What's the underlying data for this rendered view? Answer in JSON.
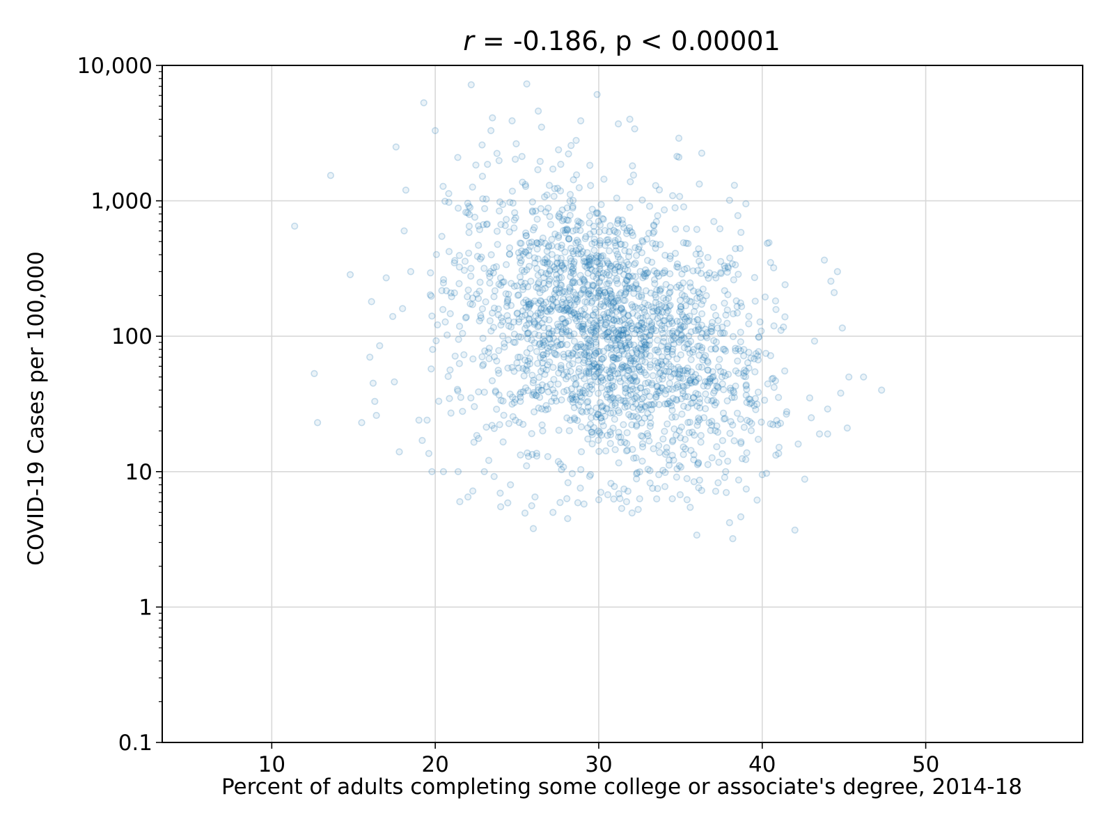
{
  "chart_data": {
    "type": "scatter",
    "title": {
      "prefix": "r",
      "rest": " = -0.186, p < 0.00001"
    },
    "xlabel": "Percent of adults completing some college or associate's degree, 2014-18",
    "ylabel": "COVID-19 Cases per 100,000",
    "xlim": [
      3.3,
      59.6
    ],
    "ylim": [
      0.1,
      10000
    ],
    "yscale": "log",
    "grid": true,
    "x_ticks": [
      10,
      20,
      30,
      40,
      50
    ],
    "x_tick_labels": [
      "10",
      "20",
      "30",
      "40",
      "50"
    ],
    "y_ticks": [
      0.1,
      1,
      10,
      100,
      1000,
      10000
    ],
    "y_tick_labels": [
      "0.1",
      "1",
      "10",
      "100",
      "1,000",
      "10,000"
    ],
    "marker": {
      "shape": "hollow-circle",
      "color": "#1f77b4",
      "alpha": 0.15
    },
    "outlier_points": [
      [
        11.4,
        650
      ],
      [
        13.6,
        1540
      ],
      [
        12.6,
        53
      ],
      [
        12.8,
        23
      ],
      [
        14.8,
        285
      ],
      [
        15.5,
        23
      ],
      [
        16.0,
        70
      ],
      [
        16.2,
        45
      ],
      [
        16.3,
        33
      ],
      [
        16.4,
        26
      ],
      [
        16.1,
        180
      ],
      [
        16.6,
        85
      ],
      [
        17.0,
        270
      ],
      [
        17.4,
        140
      ],
      [
        17.5,
        46
      ],
      [
        17.8,
        14
      ],
      [
        18.0,
        160
      ],
      [
        18.1,
        600
      ],
      [
        18.2,
        1200
      ],
      [
        18.5,
        300
      ],
      [
        19.0,
        24
      ],
      [
        19.2,
        17
      ],
      [
        19.5,
        24
      ],
      [
        19.8,
        10
      ],
      [
        20.5,
        10
      ],
      [
        21.4,
        10
      ],
      [
        21.5,
        6
      ],
      [
        22.0,
        6.5
      ],
      [
        22.3,
        7.2
      ],
      [
        23.0,
        10
      ],
      [
        23.6,
        9.2
      ],
      [
        24.0,
        5.5
      ],
      [
        24.6,
        8
      ],
      [
        25.9,
        5.6
      ],
      [
        26.0,
        3.8
      ],
      [
        26.1,
        6.5
      ],
      [
        27.2,
        5
      ],
      [
        28.1,
        4.5
      ],
      [
        29.5,
        9.5
      ],
      [
        30.0,
        6.2
      ],
      [
        31.7,
        6
      ],
      [
        32.5,
        6.3
      ],
      [
        33.6,
        7.5
      ],
      [
        34.5,
        6.3
      ],
      [
        35.4,
        6.2
      ],
      [
        36.0,
        3.4
      ],
      [
        38.2,
        3.2
      ],
      [
        38.0,
        4.2
      ],
      [
        42.0,
        3.7
      ],
      [
        42.6,
        8.8
      ],
      [
        40.0,
        9.5
      ],
      [
        42.2,
        16
      ],
      [
        43.5,
        19
      ],
      [
        44.0,
        19
      ],
      [
        43.0,
        25
      ],
      [
        44.0,
        29
      ],
      [
        44.8,
        38
      ],
      [
        45.2,
        21
      ],
      [
        45.3,
        50
      ],
      [
        46.2,
        50
      ],
      [
        47.3,
        40
      ],
      [
        44.9,
        115
      ],
      [
        44.2,
        255
      ],
      [
        44.4,
        210
      ],
      [
        44.6,
        300
      ],
      [
        43.8,
        365
      ],
      [
        43.2,
        92
      ],
      [
        42.9,
        35
      ],
      [
        41.4,
        240
      ],
      [
        40.7,
        320
      ],
      [
        39.0,
        950
      ],
      [
        38.0,
        1010
      ],
      [
        36.3,
        2250
      ],
      [
        34.9,
        2900
      ],
      [
        34.9,
        2100
      ],
      [
        32.2,
        3400
      ],
      [
        31.2,
        3700
      ],
      [
        31.9,
        4000
      ],
      [
        29.9,
        6100
      ],
      [
        28.9,
        3900
      ],
      [
        25.6,
        7300
      ],
      [
        22.2,
        7200
      ],
      [
        19.3,
        5300
      ],
      [
        20.0,
        3300
      ],
      [
        23.5,
        4100
      ],
      [
        26.3,
        4600
      ],
      [
        24.7,
        3900
      ],
      [
        26.5,
        3500
      ],
      [
        17.6,
        2500
      ]
    ],
    "cloud": {
      "count": 2150,
      "x_mean": 30.6,
      "x_sd": 4.85,
      "log10_y_mean": 2.02,
      "log10_y_sd": 0.5,
      "x_range": [
        19.5,
        41.5
      ],
      "y_range": [
        4.5,
        5000
      ]
    }
  }
}
